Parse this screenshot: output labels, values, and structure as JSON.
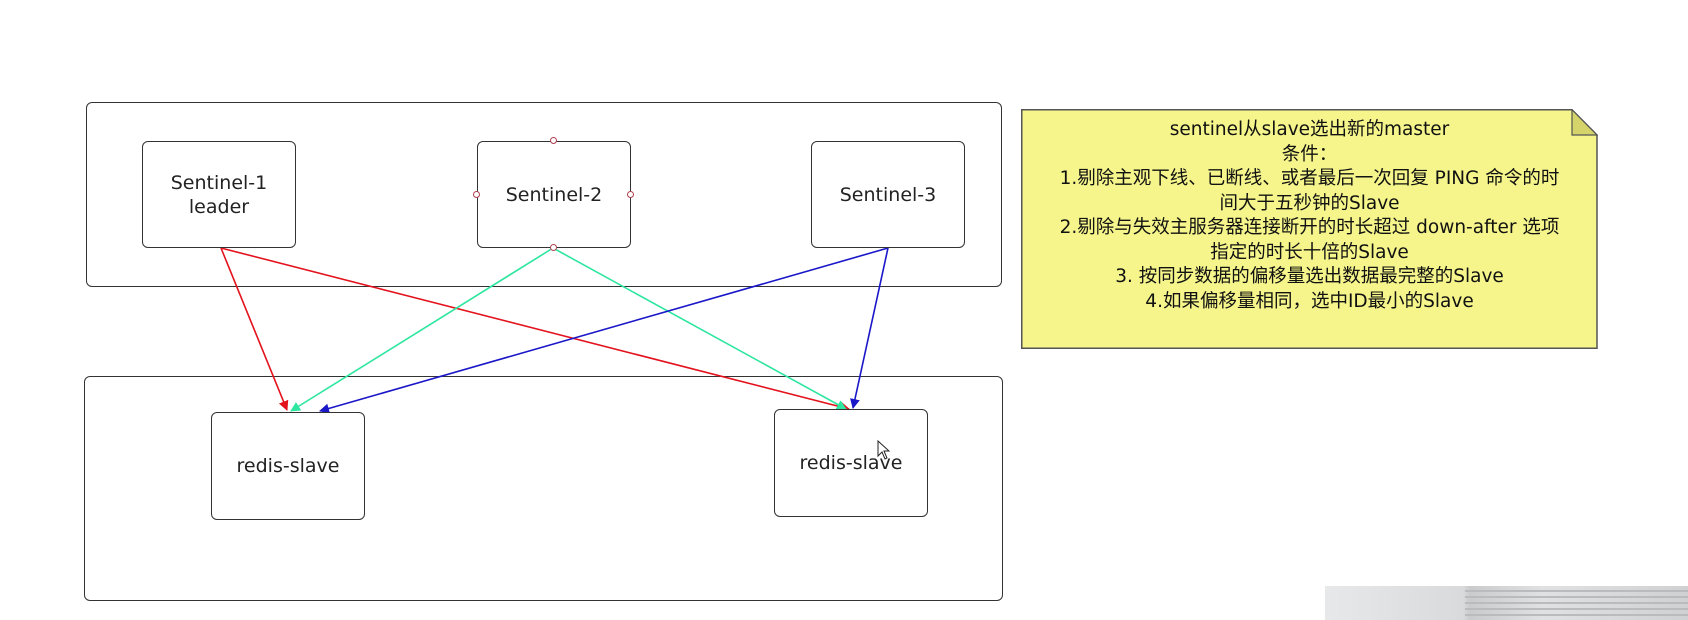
{
  "diagram": {
    "sentinels": [
      {
        "id": "sentinel-1",
        "lines": [
          "Sentinel-1",
          "leader"
        ]
      },
      {
        "id": "sentinel-2",
        "lines": [
          "Sentinel-2"
        ]
      },
      {
        "id": "sentinel-3",
        "lines": [
          "Sentinel-3"
        ]
      }
    ],
    "slaves": [
      {
        "id": "slave-left",
        "label": "redis-slave"
      },
      {
        "id": "slave-right",
        "label": "redis-slave"
      }
    ],
    "edges": [
      {
        "from": "sentinel-1",
        "to": "slave-left",
        "color": "#e3121c"
      },
      {
        "from": "sentinel-1",
        "to": "slave-right",
        "color": "#e3121c"
      },
      {
        "from": "sentinel-2",
        "to": "slave-left",
        "color": "#2ee6a0"
      },
      {
        "from": "sentinel-2",
        "to": "slave-right",
        "color": "#2ee6a0"
      },
      {
        "from": "sentinel-3",
        "to": "slave-left",
        "color": "#1a17c9"
      },
      {
        "from": "sentinel-3",
        "to": "slave-right",
        "color": "#1a17c9"
      }
    ],
    "note": {
      "title": "sentinel从slave选出新的master",
      "subtitle": "条件：",
      "lines": [
        "1.剔除主观下线、已断线、或者最后一次回复 PING 命令的时",
        "间大于五秒钟的Slave",
        "2.剔除与失效主服务器连接断开的时长超过 down-after 选项",
        "指定的时长十倍的Slave",
        "3. 按同步数据的偏移量选出数据最完整的Slave",
        "4.如果偏移量相同，选中ID最小的Slave"
      ],
      "fill_color": "#f5f58c",
      "border_color": "#555555"
    },
    "colors": {
      "sentinel_1_edges": "#e3121c",
      "sentinel_2_edges": "#2ee6a0",
      "sentinel_3_edges": "#1a17c9"
    }
  }
}
